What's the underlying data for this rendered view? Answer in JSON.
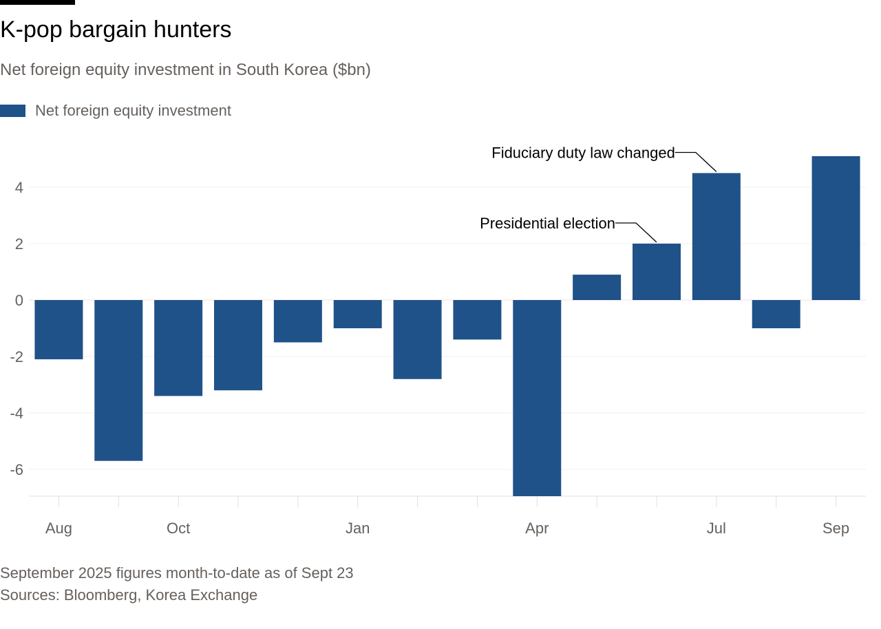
{
  "chart_data": {
    "type": "bar",
    "title": "K-pop bargain hunters",
    "subtitle": "Net foreign equity investment in South Korea ($bn)",
    "legend": [
      "Net foreign equity investment"
    ],
    "legend_placement": "top-left",
    "categories": [
      "Aug 2024",
      "Sep 2024",
      "Oct 2024",
      "Nov 2024",
      "Dec 2024",
      "Jan 2025",
      "Feb 2025",
      "Mar 2025",
      "Apr 2025",
      "May 2025",
      "Jun 2025",
      "Jul 2025",
      "Aug 2025",
      "Sep 2025"
    ],
    "series": [
      {
        "name": "Net foreign equity investment",
        "values": [
          -2.1,
          -5.7,
          -3.4,
          -3.2,
          -1.5,
          -1.0,
          -2.8,
          -1.4,
          -7.0,
          0.9,
          2.0,
          4.5,
          -1.0,
          5.1
        ]
      }
    ],
    "x_tick_labels": [
      {
        "index": 0,
        "label": "Aug"
      },
      {
        "index": 2,
        "label": "Oct"
      },
      {
        "index": 5,
        "label": "Jan"
      },
      {
        "index": 8,
        "label": "Apr"
      },
      {
        "index": 11,
        "label": "Jul"
      },
      {
        "index": 13,
        "label": "Sep"
      }
    ],
    "y_ticks": [
      -6,
      -4,
      -2,
      0,
      2,
      4
    ],
    "ylim": [
      -7,
      5.2
    ],
    "grid": true,
    "bar_color": "#1f5289",
    "annotations": [
      {
        "index": 10,
        "text": "Presidential election"
      },
      {
        "index": 11,
        "text": "Fiduciary duty law changed"
      }
    ],
    "notes": "September 2025 figures month-to-date as of Sept 23",
    "source": "Sources: Bloomberg, Korea Exchange"
  }
}
